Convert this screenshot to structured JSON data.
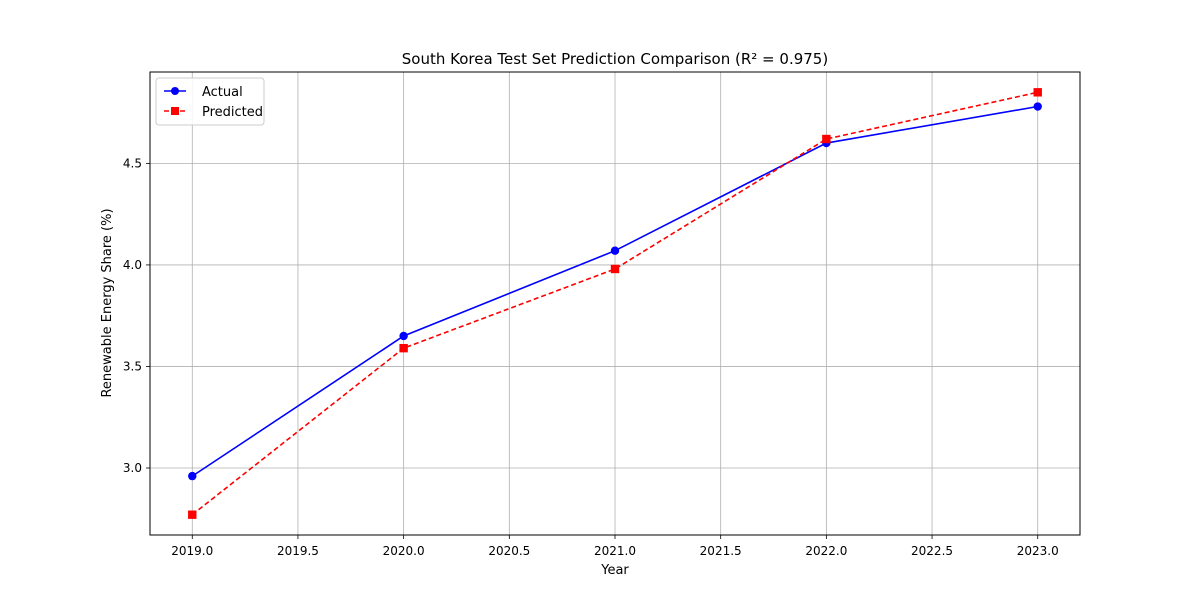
{
  "chart_data": {
    "type": "line",
    "title": "South Korea Test Set Prediction Comparison (R² = 0.975)",
    "xlabel": "Year",
    "ylabel": "Renewable Energy Share (%)",
    "xlim": [
      2018.8,
      2023.2
    ],
    "ylim": [
      2.67,
      4.95
    ],
    "x_ticks": [
      2019.0,
      2019.5,
      2020.0,
      2020.5,
      2021.0,
      2021.5,
      2022.0,
      2022.5,
      2023.0
    ],
    "x_tick_labels": [
      "2019.0",
      "2019.5",
      "2020.0",
      "2020.5",
      "2021.0",
      "2021.5",
      "2022.0",
      "2022.5",
      "2023.0"
    ],
    "y_ticks": [
      3.0,
      3.5,
      4.0,
      4.5
    ],
    "y_tick_labels": [
      "3.0",
      "3.5",
      "4.0",
      "4.5"
    ],
    "grid": true,
    "legend_position": "top-left",
    "series": [
      {
        "name": "Actual",
        "color": "#0000ff",
        "line_style": "solid",
        "marker": "circle",
        "x": [
          2019,
          2020,
          2021,
          2022,
          2023
        ],
        "y": [
          2.96,
          3.65,
          4.07,
          4.6,
          4.78
        ]
      },
      {
        "name": "Predicted",
        "color": "#ff0000",
        "line_style": "dashed",
        "marker": "square",
        "x": [
          2019,
          2020,
          2021,
          2022,
          2023
        ],
        "y": [
          2.77,
          3.59,
          3.98,
          4.62,
          4.85
        ]
      }
    ]
  }
}
